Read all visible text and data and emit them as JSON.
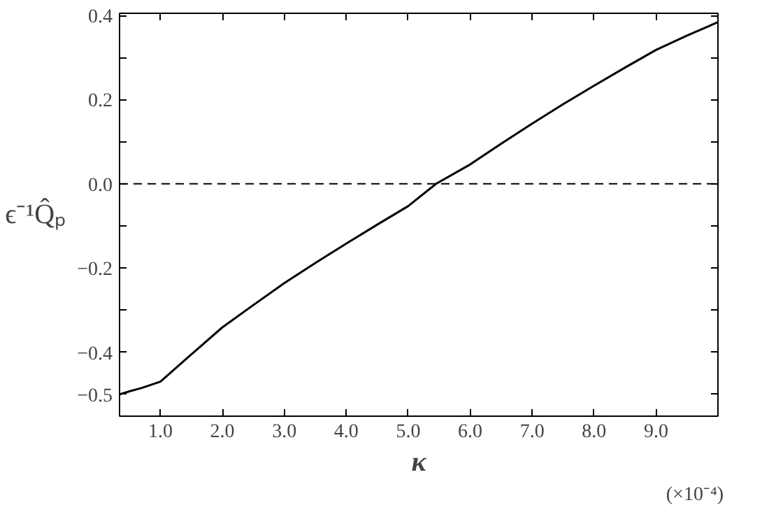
{
  "chart_data": {
    "type": "line",
    "xlabel": "κ",
    "ylabel": "ϵ⁻¹Q̂ₚ",
    "annotations": [
      "(×10⁻⁴)"
    ],
    "x": [
      0.34,
      0.5,
      0.7,
      1.0,
      1.5,
      2.0,
      2.5,
      3.0,
      3.5,
      4.0,
      4.5,
      5.0,
      5.45,
      6.0,
      6.5,
      7.0,
      7.5,
      8.0,
      8.5,
      9.0,
      9.5,
      10.0
    ],
    "series": [
      {
        "color": "#000000",
        "values": [
          -0.5,
          -0.493,
          -0.485,
          -0.47,
          -0.405,
          -0.341,
          -0.288,
          -0.236,
          -0.188,
          -0.142,
          -0.097,
          -0.053,
          0.0,
          0.046,
          0.095,
          0.143,
          0.189,
          0.233,
          0.276,
          0.318,
          0.352,
          0.384
        ]
      }
    ],
    "xlim": [
      0.34,
      10.0
    ],
    "ylim": [
      -0.552,
      0.405
    ],
    "xticks": [
      {
        "value": 1,
        "label": "1.0"
      },
      {
        "value": 2,
        "label": "2.0"
      },
      {
        "value": 3,
        "label": "3.0"
      },
      {
        "value": 4,
        "label": "4.0"
      },
      {
        "value": 5,
        "label": "5.0"
      },
      {
        "value": 6,
        "label": "6.0"
      },
      {
        "value": 7,
        "label": "7.0"
      },
      {
        "value": 8,
        "label": "8.0"
      },
      {
        "value": 9,
        "label": "9.0"
      }
    ],
    "yticks": [
      {
        "value": 0.4,
        "label": "0.4"
      },
      {
        "value": 0.3,
        "label": null
      },
      {
        "value": 0.2,
        "label": "0.2"
      },
      {
        "value": 0.1,
        "label": null
      },
      {
        "value": 0.0,
        "label": "0.0"
      },
      {
        "value": -0.1,
        "label": null
      },
      {
        "value": -0.2,
        "label": "−0.2"
      },
      {
        "value": -0.3,
        "label": null
      },
      {
        "value": -0.4,
        "label": "−0.4"
      },
      {
        "value": -0.5,
        "label": "−0.5"
      }
    ],
    "ref_lines": [
      {
        "axis": "y",
        "value": 0.0,
        "color": "#000000",
        "line_style": "dashed"
      }
    ],
    "grid": false,
    "marker": "none",
    "line_style": "solid"
  }
}
